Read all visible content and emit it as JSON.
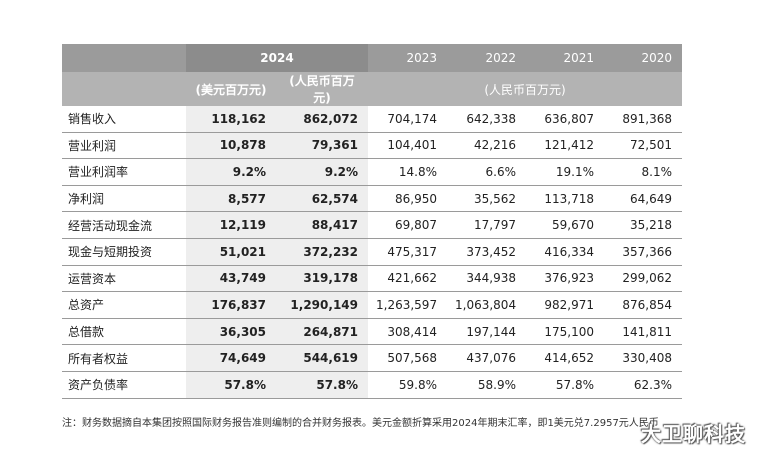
{
  "table": {
    "years": [
      "2024",
      "2023",
      "2022",
      "2021",
      "2020"
    ],
    "unit_usd": "(美元百万元)",
    "unit_rmb_2024": "(人民币百万元)",
    "unit_rmb_hist": "(人民币百万元)",
    "rows": [
      {
        "label": "销售收入",
        "usd": "118,162",
        "rmb": "862,072",
        "y2023": "704,174",
        "y2022": "642,338",
        "y2021": "636,807",
        "y2020": "891,368"
      },
      {
        "label": "营业利润",
        "usd": "10,878",
        "rmb": "79,361",
        "y2023": "104,401",
        "y2022": "42,216",
        "y2021": "121,412",
        "y2020": "72,501"
      },
      {
        "label": "营业利润率",
        "usd": "9.2%",
        "rmb": "9.2%",
        "y2023": "14.8%",
        "y2022": "6.6%",
        "y2021": "19.1%",
        "y2020": "8.1%"
      },
      {
        "label": "净利润",
        "usd": "8,577",
        "rmb": "62,574",
        "y2023": "86,950",
        "y2022": "35,562",
        "y2021": "113,718",
        "y2020": "64,649"
      },
      {
        "label": "经营活动现金流",
        "usd": "12,119",
        "rmb": "88,417",
        "y2023": "69,807",
        "y2022": "17,797",
        "y2021": "59,670",
        "y2020": "35,218"
      },
      {
        "label": "现金与短期投资",
        "usd": "51,021",
        "rmb": "372,232",
        "y2023": "475,317",
        "y2022": "373,452",
        "y2021": "416,334",
        "y2020": "357,366"
      },
      {
        "label": "运营资本",
        "usd": "43,749",
        "rmb": "319,178",
        "y2023": "421,662",
        "y2022": "344,938",
        "y2021": "376,923",
        "y2020": "299,062"
      },
      {
        "label": "总资产",
        "usd": "176,837",
        "rmb": "1,290,149",
        "y2023": "1,263,597",
        "y2022": "1,063,804",
        "y2021": "982,971",
        "y2020": "876,854"
      },
      {
        "label": "总借款",
        "usd": "36,305",
        "rmb": "264,871",
        "y2023": "308,414",
        "y2022": "197,144",
        "y2021": "175,100",
        "y2020": "141,811"
      },
      {
        "label": "所有者权益",
        "usd": "74,649",
        "rmb": "544,619",
        "y2023": "507,568",
        "y2022": "437,076",
        "y2021": "414,652",
        "y2020": "330,408"
      },
      {
        "label": "资产负债率",
        "usd": "57.8%",
        "rmb": "57.8%",
        "y2023": "59.8%",
        "y2022": "58.9%",
        "y2021": "57.8%",
        "y2020": "62.3%"
      }
    ]
  },
  "footnote": "注：财务数据摘自本集团按照国际财务报告准则编制的合并财务报表。美元金额折算采用2024年期末汇率，即1美元兑7.2957元人民币",
  "watermark": "大卫聊科技"
}
